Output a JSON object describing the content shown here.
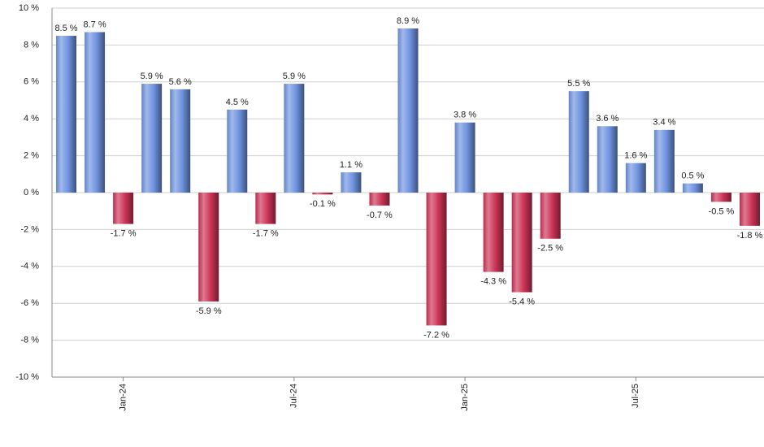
{
  "chart_data": {
    "type": "bar",
    "categories": [
      null,
      null,
      "Jan-24",
      null,
      null,
      null,
      null,
      null,
      "Jul-24",
      null,
      null,
      null,
      null,
      null,
      "Jan-25",
      null,
      null,
      null,
      null,
      null,
      "Jul-25",
      null,
      null,
      null,
      null
    ],
    "values": [
      8.5,
      8.7,
      -1.7,
      5.9,
      5.6,
      -5.9,
      4.5,
      -1.7,
      5.9,
      -0.1,
      1.1,
      -0.7,
      8.9,
      -7.2,
      3.8,
      -4.3,
      -5.4,
      -2.5,
      5.5,
      3.6,
      1.6,
      3.4,
      0.5,
      -0.5,
      -1.8
    ],
    "value_labels": [
      "8.5 %",
      "8.7 %",
      "-1.7 %",
      "5.9 %",
      "5.6 %",
      "-5.9 %",
      "4.5 %",
      "-1.7 %",
      "5.9 %",
      "-0.1 %",
      "1.1 %",
      "-0.7 %",
      "8.9 %",
      "-7.2 %",
      "3.8 %",
      "-4.3 %",
      "-5.4 %",
      "-2.5 %",
      "5.5 %",
      "3.6 %",
      "1.6 %",
      "3.4 %",
      "0.5 %",
      "-0.5 %",
      "-1.8 %"
    ],
    "positive_color": "#6e93e0",
    "negative_color": "#cc3355",
    "ylim": [
      -10,
      10
    ],
    "yticks": [
      {
        "value": -10,
        "label": "-10 %"
      },
      {
        "value": -8,
        "label": "-8 %"
      },
      {
        "value": -6,
        "label": "-6 %"
      },
      {
        "value": -4,
        "label": "-4 %"
      },
      {
        "value": -2,
        "label": "-2 %"
      },
      {
        "value": 0,
        "label": "0 %"
      },
      {
        "value": 2,
        "label": "2 %"
      },
      {
        "value": 4,
        "label": "4 %"
      },
      {
        "value": 6,
        "label": "6 %"
      },
      {
        "value": 8,
        "label": "8 %"
      },
      {
        "value": 10,
        "label": "10 %"
      }
    ],
    "grid": true
  }
}
